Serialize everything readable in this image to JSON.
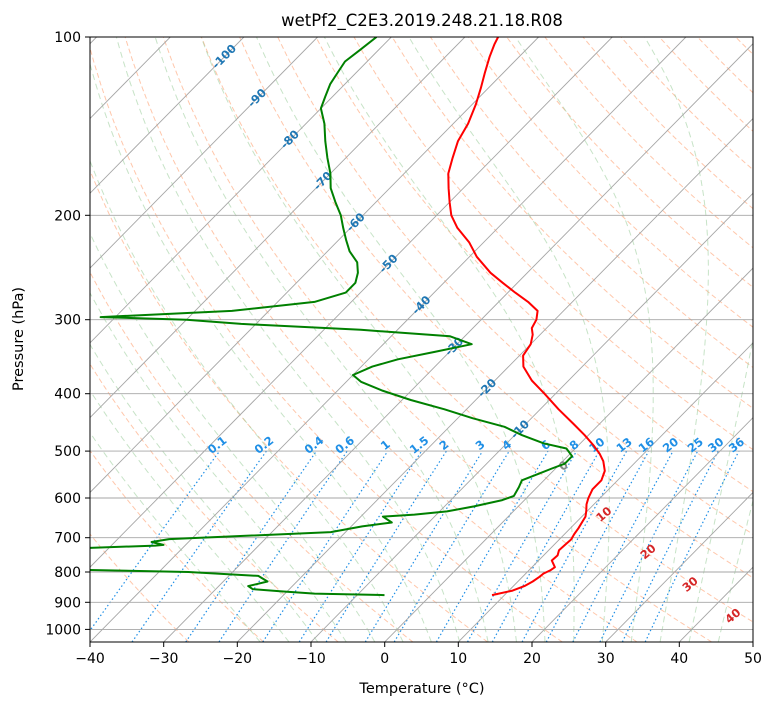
{
  "chart_data": {
    "type": "skew-t log-p",
    "title": "wetPf2_C2E3.2019.248.21.18.R08",
    "xlabel": "Temperature (°C)",
    "ylabel": "Pressure (hPa)",
    "xlim": [
      -40,
      50
    ],
    "ylim": [
      1050,
      100
    ],
    "y_scale": "log",
    "grid": true,
    "x_ticks": [
      "−40",
      "−30",
      "−20",
      "−10",
      "0",
      "10",
      "20",
      "30",
      "40",
      "50"
    ],
    "x_tick_values": [
      -40,
      -30,
      -20,
      -10,
      0,
      10,
      20,
      30,
      40,
      50
    ],
    "y_ticks": [
      "100",
      "200",
      "300",
      "400",
      "500",
      "600",
      "700",
      "800",
      "900",
      "1000"
    ],
    "y_tick_values": [
      100,
      200,
      300,
      400,
      500,
      600,
      700,
      800,
      900,
      1000
    ],
    "colors": {
      "temperature": "#ff0000",
      "dewpoint": "#008000",
      "isotherm": "#a6a6a6",
      "isobar": "#a6a6a6",
      "dry_adiabat": "#ff9966",
      "moist_adiabat": "#99cc99",
      "mixing_ratio": "#1f8fe6",
      "isotherm_label": "#1f77b4",
      "moist_label": "#888888",
      "dry_label": "#d62728"
    },
    "series": [
      {
        "name": "Temperature",
        "points": [
          [
            8.3,
            875
          ],
          [
            10.5,
            860
          ],
          [
            11.5,
            845
          ],
          [
            12,
            830
          ],
          [
            12.3,
            815
          ],
          [
            12.4,
            805
          ],
          [
            12.9,
            795
          ],
          [
            13.1,
            785
          ],
          [
            11.8,
            765
          ],
          [
            11.9,
            750
          ],
          [
            11.4,
            735
          ],
          [
            11.5,
            720
          ],
          [
            11.6,
            705
          ],
          [
            11.3,
            690
          ],
          [
            11.1,
            675
          ],
          [
            10.8,
            660
          ],
          [
            10.5,
            645
          ],
          [
            9.8,
            630
          ],
          [
            9.0,
            615
          ],
          [
            8.4,
            600
          ],
          [
            7.8,
            580
          ],
          [
            7.8,
            560
          ],
          [
            7.0,
            540
          ],
          [
            5.5,
            520
          ],
          [
            4.0,
            505
          ],
          [
            2.2,
            490
          ],
          [
            -0.5,
            470
          ],
          [
            -3.5,
            450
          ],
          [
            -7.5,
            425
          ],
          [
            -11.5,
            400
          ],
          [
            -15,
            380
          ],
          [
            -18,
            360
          ],
          [
            -19.5,
            345
          ],
          [
            -20,
            330
          ],
          [
            -21,
            318
          ],
          [
            -22,
            310
          ],
          [
            -22.5,
            300
          ],
          [
            -23.5,
            290
          ],
          [
            -26,
            280
          ],
          [
            -29,
            270
          ],
          [
            -32,
            260
          ],
          [
            -35,
            250
          ],
          [
            -39,
            235
          ],
          [
            -42,
            222
          ],
          [
            -45.5,
            210
          ],
          [
            -48,
            200
          ],
          [
            -50,
            190
          ],
          [
            -52,
            180
          ],
          [
            -54,
            170
          ],
          [
            -55.5,
            160
          ],
          [
            -57,
            150
          ],
          [
            -58,
            140
          ],
          [
            -59.5,
            130
          ],
          [
            -61,
            122
          ],
          [
            -62.5,
            115
          ],
          [
            -64,
            108
          ],
          [
            -65,
            103
          ],
          [
            -65.5,
            100
          ]
        ]
      },
      {
        "name": "Dewpoint",
        "points": [
          [
            -6.3,
            875
          ],
          [
            -16,
            870
          ],
          [
            -21,
            862
          ],
          [
            -25,
            855
          ],
          [
            -26,
            845
          ],
          [
            -24,
            830
          ],
          [
            -26,
            812
          ],
          [
            -36,
            800
          ],
          [
            -47,
            795
          ],
          [
            -57,
            790
          ],
          [
            -62,
            785
          ],
          [
            -55,
            730
          ],
          [
            -44,
            722
          ],
          [
            -43,
            720
          ],
          [
            -45,
            712
          ],
          [
            -43,
            704
          ],
          [
            -33,
            695
          ],
          [
            -22,
            685
          ],
          [
            -18.5,
            670
          ],
          [
            -15,
            660
          ],
          [
            -17,
            645
          ],
          [
            -13,
            640
          ],
          [
            -9,
            632
          ],
          [
            -6,
            620
          ],
          [
            -3,
            605
          ],
          [
            -2,
            595
          ],
          [
            -2.5,
            575
          ],
          [
            -3,
            560
          ],
          [
            -1.5,
            545
          ],
          [
            -0.5,
            535
          ],
          [
            0.6,
            525
          ],
          [
            0.6,
            510
          ],
          [
            -1.2,
            495
          ],
          [
            -5,
            485
          ],
          [
            -9,
            470
          ],
          [
            -12.5,
            455
          ],
          [
            -18,
            440
          ],
          [
            -23,
            425
          ],
          [
            -28.8,
            410
          ],
          [
            -34,
            395
          ],
          [
            -38,
            382
          ],
          [
            -40,
            372
          ],
          [
            -38.5,
            360
          ],
          [
            -36,
            350
          ],
          [
            -32,
            340
          ],
          [
            -28,
            330
          ],
          [
            -32,
            320
          ],
          [
            -45,
            312
          ],
          [
            -62,
            305
          ],
          [
            -70,
            300
          ],
          [
            -82,
            297
          ],
          [
            -65,
            290
          ],
          [
            -55,
            280
          ],
          [
            -52,
            270
          ],
          [
            -52,
            260
          ],
          [
            -53,
            250
          ],
          [
            -54.5,
            240
          ],
          [
            -57,
            230
          ],
          [
            -59,
            220
          ],
          [
            -61,
            210
          ],
          [
            -63,
            200
          ],
          [
            -65.5,
            190
          ],
          [
            -68,
            180
          ],
          [
            -70,
            170
          ],
          [
            -72.5,
            160
          ],
          [
            -75,
            150
          ],
          [
            -77.5,
            140
          ],
          [
            -80,
            132
          ],
          [
            -81,
            126
          ],
          [
            -82,
            120
          ],
          [
            -82.5,
            115
          ],
          [
            -83,
            110
          ],
          [
            -82.5,
            105
          ],
          [
            -82,
            100
          ]
        ]
      }
    ],
    "isotherm_labels": [
      "-100",
      "-90",
      "-80",
      "-70",
      "-60",
      "-50",
      "-40",
      "-30",
      "-20",
      "-10"
    ],
    "isotherm_label_values": [
      -100,
      -90,
      -80,
      -70,
      -60,
      -50,
      -40,
      -30,
      -20,
      -10
    ],
    "mixing_ratio_labels": [
      "0.1",
      "0.2",
      "0.4",
      "0.6",
      "1",
      "1.5",
      "2",
      "3",
      "4",
      "6",
      "8",
      "10",
      "13",
      "16",
      "20",
      "25",
      "30",
      "36"
    ],
    "mixing_ratio_values": [
      0.1,
      0.2,
      0.4,
      0.6,
      1,
      1.5,
      2,
      3,
      4,
      6,
      8,
      10,
      13,
      16,
      20,
      25,
      30,
      36
    ],
    "moist_adiabat_labels": [
      "0"
    ],
    "dry_adiabat_labels": [
      "10",
      "20",
      "30",
      "40"
    ],
    "dry_adiabat_values": [
      10,
      20,
      30,
      40
    ]
  }
}
